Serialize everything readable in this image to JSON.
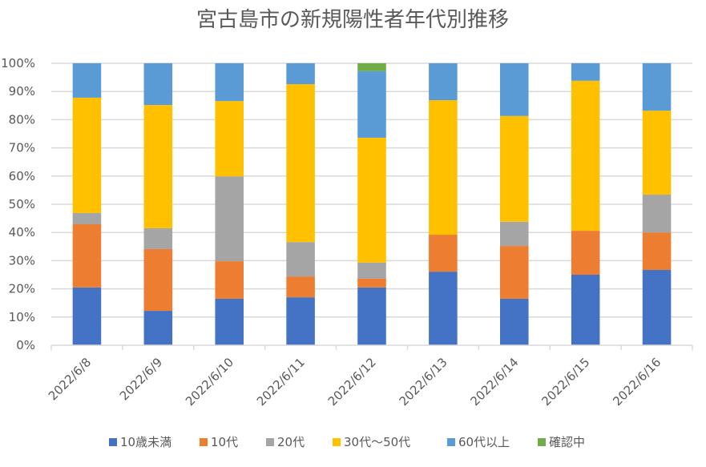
{
  "chart_data": {
    "type": "bar",
    "stacked": true,
    "percent_stacked": true,
    "title": "宮古島市の新規陽性者年代別推移",
    "xlabel": "",
    "ylabel": "",
    "ylim": [
      0,
      100
    ],
    "yticks": [
      "0%",
      "10%",
      "20%",
      "30%",
      "40%",
      "50%",
      "60%",
      "70%",
      "80%",
      "90%",
      "100%"
    ],
    "grid": true,
    "legend_position": "bottom",
    "categories": [
      "2022/6/8",
      "2022/6/9",
      "2022/6/10",
      "2022/6/11",
      "2022/6/12",
      "2022/6/13",
      "2022/6/14",
      "2022/6/15",
      "2022/6/16"
    ],
    "series": [
      {
        "name": "10歳未満",
        "color": "#4472C4",
        "values": [
          20.5,
          12.2,
          16.5,
          17.0,
          20.5,
          26.1,
          16.5,
          25.0,
          26.7
        ]
      },
      {
        "name": "10代",
        "color": "#ED7D31",
        "values": [
          22.4,
          21.9,
          13.3,
          7.4,
          3.1,
          13.1,
          18.7,
          15.6,
          13.3
        ]
      },
      {
        "name": "20代",
        "color": "#A5A5A5",
        "values": [
          4.0,
          7.4,
          30.1,
          12.2,
          5.7,
          0,
          8.6,
          0,
          13.4
        ]
      },
      {
        "name": "30代～50代",
        "color": "#FFC000",
        "values": [
          40.9,
          43.7,
          26.7,
          56.0,
          44.3,
          47.7,
          37.5,
          53.2,
          29.8
        ]
      },
      {
        "name": "60代以上",
        "color": "#5B9BD5",
        "values": [
          12.2,
          14.8,
          13.4,
          7.4,
          23.6,
          13.1,
          18.7,
          6.2,
          16.8
        ]
      },
      {
        "name": "確認中",
        "color": "#70AD47",
        "values": [
          0,
          0,
          0,
          0,
          2.8,
          0,
          0,
          0,
          0
        ]
      }
    ]
  }
}
